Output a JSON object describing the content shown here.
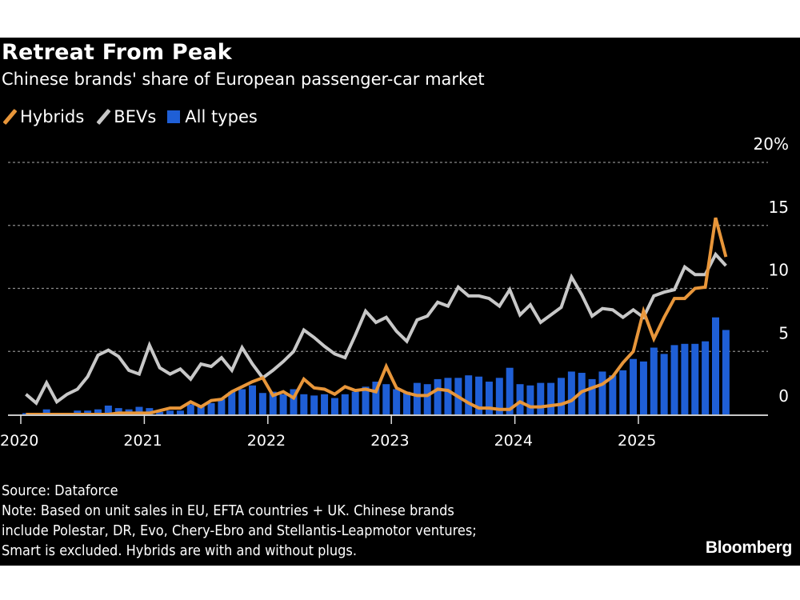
{
  "header": {
    "title": "Retreat From Peak",
    "subtitle": "Chinese brands' share of European passenger-car market"
  },
  "legend": [
    {
      "label": "Hybrids",
      "icon": "line-swatch",
      "color": "#e8963a"
    },
    {
      "label": "BEVs",
      "icon": "line-swatch",
      "color": "#c8c8c8"
    },
    {
      "label": "All types",
      "icon": "square-swatch",
      "color": "#1f5fd6"
    }
  ],
  "footer": {
    "source": "Source: Dataforce",
    "note_lines": [
      "Note: Based on unit sales in EU, EFTA countries + UK. Chinese brands",
      "include Polestar, DR, Evo, Chery-Ebro and Stellantis-Leapmotor ventures;",
      "Smart is excluded. Hybrids are with and without plugs."
    ],
    "brand": "Bloomberg"
  },
  "chart_data": {
    "type": "bar+line",
    "title": "Retreat From Peak",
    "subtitle": "Chinese brands' share of European passenger-car market",
    "xlabel": "",
    "ylabel": "",
    "unit": "%",
    "ylim": [
      0,
      20
    ],
    "yticks": [
      0,
      5,
      10,
      15,
      20
    ],
    "ytick_labels": [
      "0",
      "5",
      "10",
      "15",
      "20%"
    ],
    "xticks": [
      "2020",
      "2021",
      "2022",
      "2023",
      "2024",
      "2025"
    ],
    "grid": "horizontal-dotted",
    "legend_position": "top-left",
    "x_start": "2020-01",
    "x_end": "2025-09",
    "frequency": "monthly",
    "series": [
      {
        "name": "All types",
        "type": "bar",
        "color": "#1f5fd6",
        "values": [
          0.1,
          0.1,
          0.4,
          0.1,
          0.1,
          0.3,
          0.3,
          0.4,
          0.7,
          0.5,
          0.4,
          0.6,
          0.5,
          0.2,
          0.3,
          0.3,
          0.8,
          0.7,
          0.9,
          1.2,
          1.8,
          2.0,
          2.3,
          1.7,
          1.8,
          1.6,
          2.0,
          1.6,
          1.5,
          1.6,
          1.3,
          1.6,
          1.8,
          2.2,
          2.6,
          2.4,
          2.0,
          1.8,
          2.5,
          2.4,
          2.8,
          2.9,
          2.9,
          3.1,
          3.0,
          2.6,
          2.9,
          3.7,
          2.4,
          2.3,
          2.5,
          2.5,
          2.9,
          3.4,
          3.3,
          2.8,
          3.4,
          3.1,
          3.5,
          4.4,
          4.2,
          5.3,
          4.8,
          5.5,
          5.6,
          5.6,
          5.8,
          7.7,
          6.7
        ]
      },
      {
        "name": "BEVs",
        "type": "line",
        "color": "#c8c8c8",
        "values": [
          1.6,
          0.9,
          2.5,
          1.0,
          1.6,
          2.0,
          3.0,
          4.7,
          5.1,
          4.6,
          3.5,
          3.2,
          5.5,
          3.7,
          3.2,
          3.6,
          2.8,
          4.0,
          3.8,
          4.5,
          3.5,
          5.3,
          4.0,
          2.9,
          3.5,
          4.2,
          5.0,
          6.7,
          6.1,
          5.4,
          4.8,
          4.5,
          6.3,
          8.2,
          7.3,
          7.7,
          6.6,
          5.8,
          7.5,
          7.8,
          8.9,
          8.6,
          10.1,
          9.4,
          9.4,
          9.2,
          8.6,
          9.9,
          7.9,
          8.7,
          7.3,
          7.9,
          8.5,
          10.9,
          9.5,
          7.8,
          8.4,
          8.3,
          7.7,
          8.3,
          7.7,
          9.4,
          9.7,
          9.9,
          11.7,
          11.1,
          11.1,
          12.7,
          11.8
        ]
      },
      {
        "name": "Hybrids",
        "type": "line",
        "color": "#e8963a",
        "values": [
          0.0,
          0.0,
          0.0,
          0.0,
          0.0,
          0.0,
          0.0,
          0.0,
          0.0,
          0.1,
          0.1,
          0.1,
          0.1,
          0.3,
          0.5,
          0.5,
          1.0,
          0.6,
          1.1,
          1.2,
          1.8,
          2.2,
          2.6,
          2.9,
          1.5,
          1.8,
          1.3,
          2.8,
          2.1,
          2.0,
          1.6,
          2.2,
          1.9,
          2.0,
          1.8,
          3.8,
          2.1,
          1.7,
          1.5,
          1.5,
          2.0,
          1.9,
          1.4,
          0.9,
          0.5,
          0.5,
          0.4,
          0.4,
          1.0,
          0.6,
          0.6,
          0.7,
          0.8,
          1.1,
          1.8,
          2.1,
          2.4,
          3.0,
          4.1,
          5.0,
          8.2,
          6.0,
          7.7,
          9.2,
          9.2,
          10.0,
          10.1,
          15.6,
          12.5
        ]
      }
    ]
  }
}
